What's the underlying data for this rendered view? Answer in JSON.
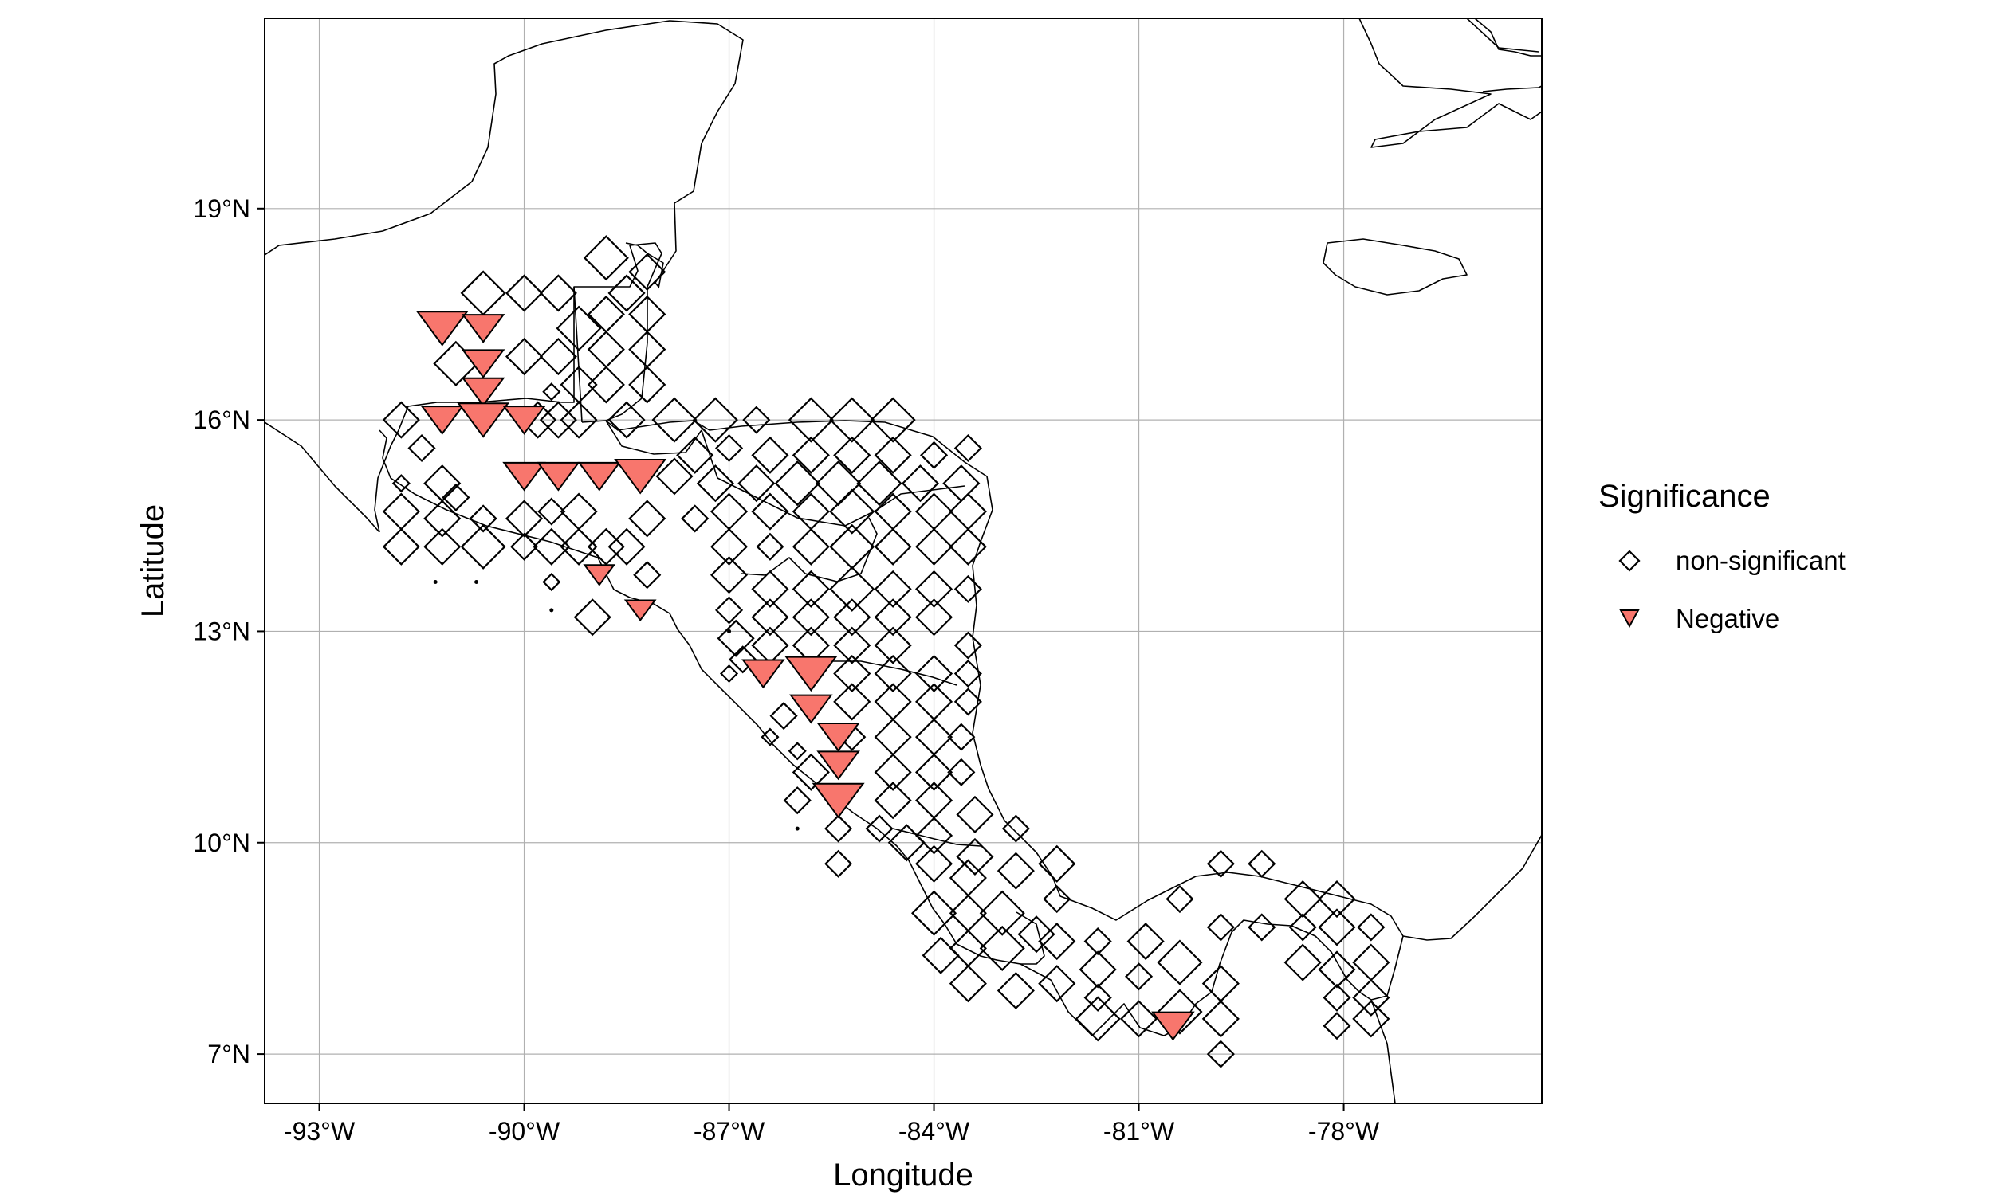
{
  "chart_data": {
    "type": "scatter",
    "subtype": "map",
    "xlabel": "Longitude",
    "ylabel": "Latitude",
    "xlim": [
      -93.8,
      -75.1
    ],
    "ylim": [
      6.3,
      21.7
    ],
    "x_ticks": [
      {
        "value": -93,
        "label": "-93°W"
      },
      {
        "value": -90,
        "label": "-90°W"
      },
      {
        "value": -87,
        "label": "-87°W"
      },
      {
        "value": -84,
        "label": "-84°W"
      },
      {
        "value": -81,
        "label": "-81°W"
      },
      {
        "value": -78,
        "label": "-78°W"
      }
    ],
    "y_ticks": [
      {
        "value": 7,
        "label": "7°N"
      },
      {
        "value": 10,
        "label": "10°N"
      },
      {
        "value": 13,
        "label": "13°N"
      },
      {
        "value": 16,
        "label": "16°N"
      },
      {
        "value": 19,
        "label": "19°N"
      }
    ],
    "grid": true,
    "legend": {
      "title": "Significance",
      "position": "right",
      "entries": [
        {
          "label": "non-significant",
          "shape": "diamond",
          "color": "#000000"
        },
        {
          "label": "Negative",
          "shape": "down-triangle",
          "color": "#F8766D"
        }
      ]
    },
    "series": [
      {
        "name": "non-significant",
        "shape": "diamond",
        "color": "#000000",
        "points": [
          [
            -88.8,
            18.3,
            4
          ],
          [
            -88.2,
            18.1,
            3
          ],
          [
            -88.5,
            17.8,
            3
          ],
          [
            -88.8,
            17.5,
            3
          ],
          [
            -88.2,
            17.5,
            3
          ],
          [
            -88.8,
            17.0,
            3
          ],
          [
            -88.2,
            17.0,
            3
          ],
          [
            -88.8,
            16.5,
            3
          ],
          [
            -88.2,
            16.5,
            3
          ],
          [
            -88.5,
            16.0,
            3
          ],
          [
            -91.8,
            16.0,
            3
          ],
          [
            -91.5,
            15.6,
            2
          ],
          [
            -91.8,
            15.1,
            1
          ],
          [
            -91.2,
            15.1,
            3
          ],
          [
            -91.8,
            14.7,
            3
          ],
          [
            -91.2,
            14.6,
            3
          ],
          [
            -90.6,
            14.6,
            2
          ],
          [
            -91.8,
            14.2,
            3
          ],
          [
            -91.2,
            14.2,
            3
          ],
          [
            -90.6,
            14.2,
            4
          ],
          [
            -90.6,
            17.8,
            4
          ],
          [
            -90.0,
            17.8,
            3
          ],
          [
            -89.5,
            17.8,
            3
          ],
          [
            -89.2,
            17.3,
            4
          ],
          [
            -89.5,
            16.9,
            3
          ],
          [
            -89.2,
            16.5,
            3
          ],
          [
            -89.5,
            16.0,
            3
          ],
          [
            -90.0,
            16.9,
            3
          ],
          [
            -89.6,
            16.4,
            1
          ],
          [
            -91.0,
            16.8,
            4
          ],
          [
            -89.8,
            16.0,
            3
          ],
          [
            -90.0,
            14.6,
            3
          ],
          [
            -90.0,
            14.2,
            2
          ],
          [
            -89.6,
            14.2,
            3
          ],
          [
            -89.6,
            14.7,
            2
          ],
          [
            -89.2,
            14.2,
            3
          ],
          [
            -89.2,
            14.7,
            3
          ],
          [
            -89.6,
            13.7,
            1
          ],
          [
            -89.0,
            13.2,
            3
          ],
          [
            -88.8,
            14.2,
            3
          ],
          [
            -88.2,
            14.6,
            3
          ],
          [
            -88.5,
            14.2,
            3
          ],
          [
            -88.2,
            13.8,
            2
          ],
          [
            -87.5,
            14.6,
            2
          ],
          [
            -87.8,
            15.2,
            3
          ],
          [
            -87.5,
            15.5,
            3
          ],
          [
            -87.2,
            16.0,
            4
          ],
          [
            -87.8,
            16.0,
            4
          ],
          [
            -86.6,
            16.0,
            2
          ],
          [
            -85.8,
            16.0,
            4
          ],
          [
            -85.2,
            16.0,
            4
          ],
          [
            -84.6,
            16.0,
            4
          ],
          [
            -87.2,
            15.1,
            3
          ],
          [
            -86.6,
            15.1,
            3
          ],
          [
            -86.0,
            15.1,
            4
          ],
          [
            -85.4,
            15.1,
            4
          ],
          [
            -84.8,
            15.1,
            4
          ],
          [
            -84.2,
            15.1,
            3
          ],
          [
            -83.6,
            15.1,
            3
          ],
          [
            -83.5,
            15.6,
            2
          ],
          [
            -84.0,
            15.5,
            2
          ],
          [
            -84.6,
            15.5,
            3
          ],
          [
            -85.2,
            15.5,
            3
          ],
          [
            -85.8,
            15.5,
            3
          ],
          [
            -86.4,
            15.5,
            3
          ],
          [
            -87.0,
            15.6,
            2
          ],
          [
            -87.0,
            14.7,
            3
          ],
          [
            -86.4,
            14.7,
            3
          ],
          [
            -85.8,
            14.7,
            3
          ],
          [
            -85.2,
            14.7,
            4
          ],
          [
            -84.6,
            14.7,
            3
          ],
          [
            -84.0,
            14.7,
            3
          ],
          [
            -83.5,
            14.7,
            3
          ],
          [
            -87.0,
            14.2,
            3
          ],
          [
            -86.4,
            14.2,
            2
          ],
          [
            -85.8,
            14.2,
            3
          ],
          [
            -85.2,
            14.2,
            4
          ],
          [
            -84.6,
            14.2,
            3
          ],
          [
            -84.0,
            14.2,
            3
          ],
          [
            -83.5,
            14.2,
            3
          ],
          [
            -87.0,
            13.8,
            3
          ],
          [
            -86.4,
            13.6,
            3
          ],
          [
            -85.8,
            13.6,
            3
          ],
          [
            -85.2,
            13.6,
            4
          ],
          [
            -84.6,
            13.6,
            3
          ],
          [
            -84.0,
            13.6,
            3
          ],
          [
            -83.5,
            13.6,
            2
          ],
          [
            -87.0,
            13.3,
            2
          ],
          [
            -86.4,
            13.2,
            3
          ],
          [
            -85.8,
            13.2,
            3
          ],
          [
            -85.2,
            13.2,
            3
          ],
          [
            -84.6,
            13.2,
            3
          ],
          [
            -84.0,
            13.2,
            3
          ],
          [
            -86.9,
            12.9,
            3
          ],
          [
            -86.4,
            12.8,
            3
          ],
          [
            -85.8,
            12.8,
            3
          ],
          [
            -85.2,
            12.8,
            3
          ],
          [
            -84.6,
            12.8,
            3
          ],
          [
            -83.5,
            12.8,
            2
          ],
          [
            -87.0,
            12.4,
            1
          ],
          [
            -85.2,
            12.4,
            3
          ],
          [
            -84.6,
            12.4,
            3
          ],
          [
            -84.0,
            12.4,
            3
          ],
          [
            -83.5,
            12.4,
            2
          ],
          [
            -85.2,
            12.0,
            3
          ],
          [
            -84.6,
            12.0,
            3
          ],
          [
            -84.0,
            12.0,
            3
          ],
          [
            -83.5,
            12.0,
            2
          ],
          [
            -86.4,
            11.5,
            1
          ],
          [
            -86.0,
            11.3,
            1
          ],
          [
            -85.8,
            11.0,
            3
          ],
          [
            -85.2,
            11.5,
            2
          ],
          [
            -84.6,
            11.5,
            3
          ],
          [
            -84.0,
            11.5,
            3
          ],
          [
            -83.6,
            11.5,
            2
          ],
          [
            -84.6,
            11.0,
            3
          ],
          [
            -84.0,
            11.0,
            3
          ],
          [
            -83.6,
            11.0,
            2
          ],
          [
            -86.0,
            10.6,
            2
          ],
          [
            -85.4,
            10.2,
            2
          ],
          [
            -84.6,
            10.6,
            3
          ],
          [
            -84.0,
            10.6,
            3
          ],
          [
            -83.4,
            10.4,
            3
          ],
          [
            -85.4,
            9.7,
            2
          ],
          [
            -84.8,
            10.2,
            2
          ],
          [
            -84.4,
            10.0,
            3
          ],
          [
            -84.0,
            10.1,
            3
          ],
          [
            -83.4,
            9.8,
            3
          ],
          [
            -82.8,
            10.2,
            2
          ],
          [
            -84.0,
            9.7,
            3
          ],
          [
            -83.5,
            9.5,
            3
          ],
          [
            -82.8,
            9.6,
            3
          ],
          [
            -82.2,
            9.7,
            3
          ],
          [
            -84.0,
            9.0,
            4
          ],
          [
            -83.5,
            9.0,
            3
          ],
          [
            -83.0,
            9.0,
            4
          ],
          [
            -82.2,
            9.2,
            2
          ],
          [
            -83.5,
            8.5,
            3
          ],
          [
            -83.0,
            8.5,
            4
          ],
          [
            -82.5,
            8.7,
            3
          ],
          [
            -83.5,
            8.0,
            3
          ],
          [
            -82.8,
            7.9,
            3
          ],
          [
            -82.2,
            8.0,
            3
          ],
          [
            -81.6,
            8.2,
            3
          ],
          [
            -81.0,
            8.1,
            2
          ],
          [
            -81.6,
            8.6,
            2
          ],
          [
            -80.9,
            8.6,
            3
          ],
          [
            -81.6,
            7.8,
            2
          ],
          [
            -81.0,
            7.5,
            3
          ],
          [
            -80.4,
            8.3,
            4
          ],
          [
            -79.8,
            8.0,
            3
          ],
          [
            -80.4,
            7.6,
            4
          ],
          [
            -79.8,
            7.5,
            3
          ],
          [
            -80.4,
            9.2,
            2
          ],
          [
            -79.8,
            9.7,
            2
          ],
          [
            -79.8,
            8.8,
            2
          ],
          [
            -79.2,
            9.7,
            2
          ],
          [
            -79.2,
            8.8,
            2
          ],
          [
            -78.6,
            9.2,
            3
          ],
          [
            -78.6,
            8.8,
            2
          ],
          [
            -78.1,
            9.2,
            3
          ],
          [
            -78.1,
            8.8,
            3
          ],
          [
            -77.6,
            8.8,
            2
          ],
          [
            -78.6,
            8.3,
            3
          ],
          [
            -78.1,
            8.2,
            3
          ],
          [
            -77.6,
            8.3,
            3
          ],
          [
            -78.1,
            7.8,
            2
          ],
          [
            -77.6,
            7.8,
            3
          ],
          [
            -78.1,
            7.4,
            2
          ],
          [
            -77.6,
            7.5,
            3
          ],
          [
            -81.6,
            7.5,
            4
          ],
          [
            -82.2,
            8.6,
            3
          ],
          [
            -83.9,
            8.4,
            3
          ],
          [
            -79.8,
            7.0,
            2
          ],
          [
            -91.3,
            13.7,
            0
          ],
          [
            -90.7,
            13.7,
            0
          ],
          [
            -89.6,
            13.3,
            0
          ],
          [
            -87.0,
            13.0,
            0
          ],
          [
            -86.0,
            10.2,
            0
          ],
          [
            -89.2,
            16.0,
            3
          ],
          [
            -91.0,
            14.9,
            2
          ],
          [
            -86.2,
            11.8,
            2
          ],
          [
            -86.8,
            12.6,
            2
          ]
        ]
      },
      {
        "name": "Negative",
        "shape": "down-triangle",
        "color": "#F8766D",
        "points": [
          [
            -91.2,
            17.3,
            4
          ],
          [
            -90.6,
            17.3,
            3
          ],
          [
            -90.6,
            16.8,
            3
          ],
          [
            -90.6,
            16.4,
            3
          ],
          [
            -91.2,
            16.0,
            3
          ],
          [
            -90.6,
            16.0,
            4
          ],
          [
            -90.0,
            16.0,
            3
          ],
          [
            -90.0,
            15.2,
            3
          ],
          [
            -89.5,
            15.2,
            3
          ],
          [
            -88.9,
            15.2,
            3
          ],
          [
            -88.3,
            15.2,
            4
          ],
          [
            -88.9,
            13.8,
            2
          ],
          [
            -88.3,
            13.3,
            2
          ],
          [
            -86.5,
            12.4,
            3
          ],
          [
            -85.8,
            12.4,
            4
          ],
          [
            -85.8,
            11.9,
            3
          ],
          [
            -85.4,
            11.5,
            3
          ],
          [
            -85.4,
            11.1,
            3
          ],
          [
            -85.4,
            10.6,
            4
          ],
          [
            -80.5,
            7.4,
            3
          ]
        ]
      }
    ]
  }
}
